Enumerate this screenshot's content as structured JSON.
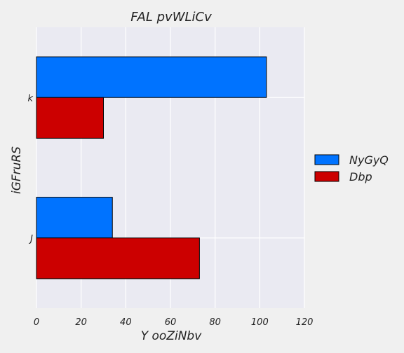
{
  "chart_data": {
    "type": "bar",
    "orientation": "horizontal",
    "title": "FAL pvWLiCv",
    "xlabel": "Y ooZiNbv",
    "ylabel": "iGFruRS",
    "categories": [
      "k",
      "J"
    ],
    "series": [
      {
        "name": "NyGyQ",
        "values": [
          103,
          34
        ],
        "color": "#0073ff"
      },
      {
        "name": "Dbp",
        "values": [
          30,
          73
        ],
        "color": "#cc0000"
      }
    ],
    "xlim": [
      0,
      120
    ],
    "xticks": [
      0,
      20,
      40,
      60,
      80,
      100,
      120
    ],
    "grid": true,
    "legend_position": "right",
    "background_color": "#eaeaf2"
  }
}
